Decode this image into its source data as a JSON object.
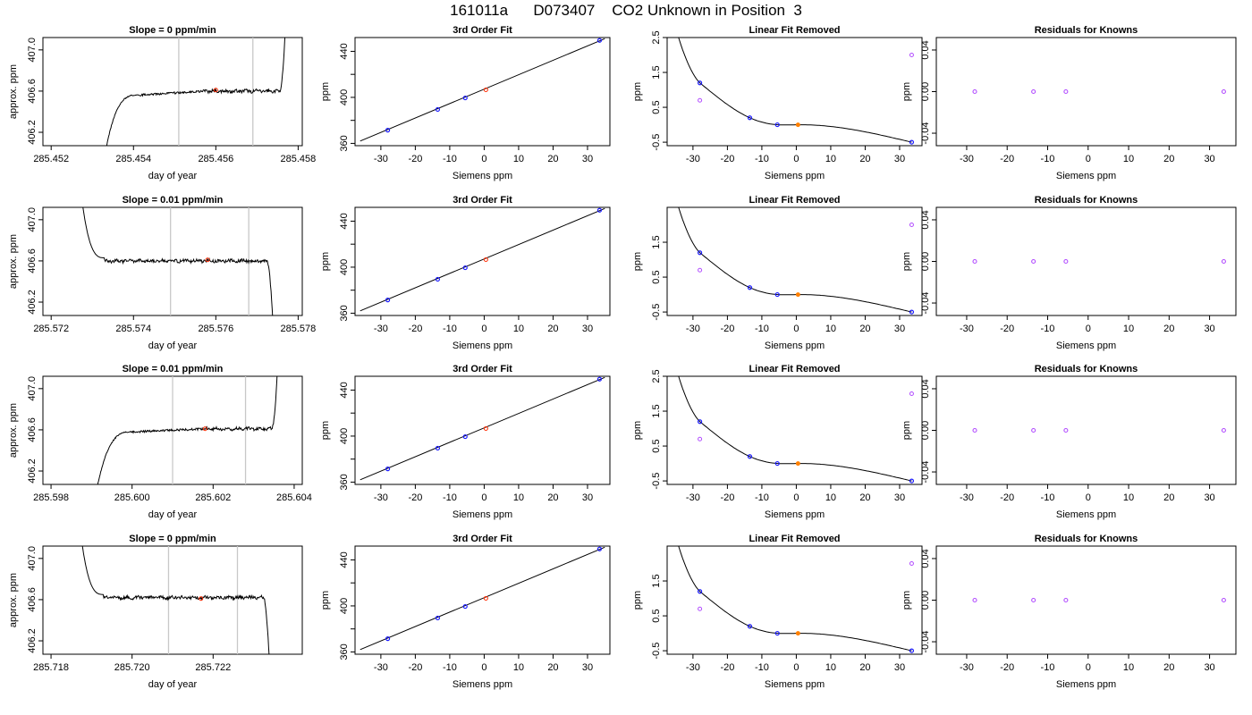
{
  "page_title": "161011a      D073407    CO2 Unknown in Position  3",
  "colors": {
    "trace": "#000000",
    "sample_window": "#c8c8c8",
    "unknown_point": "#ff2a00",
    "unknown_fit_point": "#ff8000",
    "known_point": "#1a1aff",
    "residual_point": "#b24dff",
    "grid_frame": "#000000"
  },
  "chart_data": [
    {
      "type": "line",
      "row": 0,
      "title": "Slope =  0  ppm/min",
      "xlabel": "day of year",
      "ylabel": "approx. ppm",
      "xlim": [
        285.4518,
        285.4581
      ],
      "ylim": [
        406.07,
        407.12
      ],
      "xticks": [
        285.452,
        285.454,
        285.456,
        285.458
      ],
      "xtick_labels": [
        "285.452",
        "285.454",
        "285.456",
        "285.458"
      ],
      "yticks": [
        406.2,
        406.6,
        407.0
      ],
      "ytick_labels": [
        "406.2",
        "406.6",
        "407.0"
      ],
      "window": [
        285.4551,
        285.4569
      ],
      "marker": [
        285.456,
        406.61
      ],
      "trace": {
        "start": 285.4533,
        "end": 285.4577,
        "level": 406.6,
        "rise_to": 406.56,
        "rise_len": 0.0008,
        "tail_up": true
      }
    },
    {
      "type": "line",
      "row": 1,
      "title": "Slope =  0.01  ppm/min",
      "xlabel": "day of year",
      "ylabel": "approx. ppm",
      "xlim": [
        285.5718,
        285.5781
      ],
      "ylim": [
        406.07,
        407.12
      ],
      "xticks": [
        285.572,
        285.574,
        285.576,
        285.578
      ],
      "xtick_labels": [
        "285.572",
        "285.574",
        "285.576",
        "285.578"
      ],
      "yticks": [
        406.2,
        406.6,
        407.0
      ],
      "ytick_labels": [
        "406.2",
        "406.6",
        "407.0"
      ],
      "window": [
        285.5749,
        285.5768
      ],
      "marker": [
        285.5758,
        406.61
      ],
      "trace": {
        "start": 285.5727,
        "end": 285.5774,
        "level": 406.6,
        "decay_from": 407.12,
        "decay_len": 0.0006,
        "tail_up": false
      }
    },
    {
      "type": "line",
      "row": 2,
      "title": "Slope =  0.01  ppm/min",
      "xlabel": "day of year",
      "ylabel": "approx. ppm",
      "xlim": [
        285.5978,
        285.6042
      ],
      "ylim": [
        406.07,
        407.12
      ],
      "xticks": [
        285.598,
        285.6,
        285.602,
        285.604
      ],
      "xtick_labels": [
        "285.598",
        "285.600",
        "285.602",
        "285.604"
      ],
      "yticks": [
        406.2,
        406.6,
        407.0
      ],
      "ytick_labels": [
        "406.2",
        "406.6",
        "407.0"
      ],
      "window": [
        285.601,
        285.6028
      ],
      "marker": [
        285.6018,
        406.61
      ],
      "trace": {
        "start": 285.5991,
        "end": 285.6036,
        "level": 406.61,
        "rise_to": 406.58,
        "rise_len": 0.0009,
        "tail_up": true
      }
    },
    {
      "type": "line",
      "row": 3,
      "title": "Slope =  0  ppm/min",
      "xlabel": "day of year",
      "ylabel": "approx. ppm",
      "xlim": [
        285.7178,
        285.7242
      ],
      "ylim": [
        406.07,
        407.12
      ],
      "xticks": [
        285.718,
        285.72,
        285.722
      ],
      "xtick_labels": [
        "285.718",
        "285.720",
        "285.722"
      ],
      "yticks": [
        406.2,
        406.6,
        407.0
      ],
      "ytick_labels": [
        "406.2",
        "406.6",
        "407.0"
      ],
      "window": [
        285.7209,
        285.7226
      ],
      "marker": [
        285.7217,
        406.61
      ],
      "trace": {
        "start": 285.7187,
        "end": 285.7234,
        "level": 406.62,
        "decay_from": 407.12,
        "decay_len": 0.0006,
        "tail_up": false
      }
    },
    {
      "type": "scatter",
      "row": 0,
      "title": "3rd Order Fit",
      "xlabel": "Siemens ppm",
      "ylabel": "ppm",
      "xlim": [
        -37.5,
        36.5
      ],
      "ylim": [
        358,
        452
      ],
      "xticks": [
        -30,
        -20,
        -10,
        0,
        10,
        20,
        30
      ],
      "xtick_labels": [
        "-30",
        "-20",
        "-10",
        "0",
        "10",
        "20",
        "30"
      ],
      "yticks": [
        360,
        400,
        440
      ],
      "ytick_labels": [
        "360",
        "400",
        "440"
      ],
      "yticks_minor": [
        380,
        420
      ],
      "line": {
        "x": [
          -36,
          35
        ],
        "y": [
          362,
          451
        ]
      },
      "known": {
        "x": [
          -28,
          -13.5,
          -5.5,
          33.5
        ],
        "y": [
          371.5,
          389.5,
          399.5,
          449.5
        ]
      },
      "unknown": {
        "x": [
          0.5
        ],
        "y": [
          406.6
        ]
      }
    },
    {
      "type": "scatter",
      "row": 1,
      "title": "3rd Order Fit",
      "xlabel": "Siemens ppm",
      "ylabel": "ppm",
      "xlim": [
        -37.5,
        36.5
      ],
      "ylim": [
        358,
        452
      ],
      "xticks": [
        -30,
        -20,
        -10,
        0,
        10,
        20,
        30
      ],
      "xtick_labels": [
        "-30",
        "-20",
        "-10",
        "0",
        "10",
        "20",
        "30"
      ],
      "yticks": [
        360,
        400,
        440
      ],
      "ytick_labels": [
        "360",
        "400",
        "440"
      ],
      "yticks_minor": [
        380,
        420
      ],
      "line": {
        "x": [
          -36,
          35
        ],
        "y": [
          362,
          451
        ]
      },
      "known": {
        "x": [
          -28,
          -13.5,
          -5.5,
          33.5
        ],
        "y": [
          371.5,
          389.5,
          399.5,
          449.5
        ]
      },
      "unknown": {
        "x": [
          0.5
        ],
        "y": [
          406.6
        ]
      }
    },
    {
      "type": "scatter",
      "row": 2,
      "title": "3rd Order Fit",
      "xlabel": "Siemens ppm",
      "ylabel": "ppm",
      "xlim": [
        -37.5,
        36.5
      ],
      "ylim": [
        358,
        452
      ],
      "xticks": [
        -30,
        -20,
        -10,
        0,
        10,
        20,
        30
      ],
      "xtick_labels": [
        "-30",
        "-20",
        "-10",
        "0",
        "10",
        "20",
        "30"
      ],
      "yticks": [
        360,
        400,
        440
      ],
      "ytick_labels": [
        "360",
        "400",
        "440"
      ],
      "yticks_minor": [
        380,
        420
      ],
      "line": {
        "x": [
          -36,
          35
        ],
        "y": [
          362,
          451
        ]
      },
      "known": {
        "x": [
          -28,
          -13.5,
          -5.5,
          33.5
        ],
        "y": [
          371.5,
          389.5,
          399.5,
          449.5
        ]
      },
      "unknown": {
        "x": [
          0.5
        ],
        "y": [
          406.6
        ]
      }
    },
    {
      "type": "scatter",
      "row": 3,
      "title": "3rd Order Fit",
      "xlabel": "Siemens ppm",
      "ylabel": "ppm",
      "xlim": [
        -37.5,
        36.5
      ],
      "ylim": [
        358,
        452
      ],
      "xticks": [
        -30,
        -20,
        -10,
        0,
        10,
        20,
        30
      ],
      "xtick_labels": [
        "-30",
        "-20",
        "-10",
        "0",
        "10",
        "20",
        "30"
      ],
      "yticks": [
        360,
        400,
        440
      ],
      "ytick_labels": [
        "360",
        "400",
        "440"
      ],
      "yticks_minor": [
        380,
        420
      ],
      "line": {
        "x": [
          -36,
          35
        ],
        "y": [
          362,
          451
        ]
      },
      "known": {
        "x": [
          -28,
          -13.5,
          -5.5,
          33.5
        ],
        "y": [
          371.5,
          389.5,
          399.5,
          449.5
        ]
      },
      "unknown": {
        "x": [
          0.5
        ],
        "y": [
          406.6
        ]
      }
    },
    {
      "type": "scatter",
      "row": 0,
      "title": "Linear Fit Removed",
      "xlabel": "Siemens ppm",
      "ylabel": "ppm",
      "xlim": [
        -37.5,
        36.5
      ],
      "ylim": [
        -0.6,
        2.5
      ],
      "xticks": [
        -30,
        -20,
        -10,
        0,
        10,
        20,
        30
      ],
      "xtick_labels": [
        "-30",
        "-20",
        "-10",
        "0",
        "10",
        "20",
        "30"
      ],
      "yticks": [
        -0.5,
        0.5,
        1.5,
        2.5
      ],
      "ytick_labels": [
        "-0.5",
        "0.5",
        "1.5",
        "2.5"
      ],
      "curve": {
        "x0": -36,
        "x1": 33.5,
        "knots_x": [
          -28,
          -13.5,
          -5.5,
          0.5,
          33.5
        ],
        "knots_y": [
          1.2,
          0.2,
          0.0,
          0.0,
          -0.5
        ]
      },
      "known": {
        "x": [
          -28,
          -13.5,
          -5.5,
          33.5
        ],
        "y": [
          1.2,
          0.2,
          0.0,
          -0.5
        ]
      },
      "unknown": {
        "x": [
          0.5
        ],
        "y": [
          0.0
        ]
      },
      "residual_raw": {
        "x": [
          -28,
          33.5
        ],
        "y": [
          0.7,
          2.0
        ]
      }
    },
    {
      "type": "scatter",
      "row": 1,
      "title": "Linear Fit Removed",
      "xlabel": "Siemens ppm",
      "ylabel": "ppm",
      "xlim": [
        -37.5,
        36.5
      ],
      "ylim": [
        -0.6,
        2.5
      ],
      "xticks": [
        -30,
        -20,
        -10,
        0,
        10,
        20,
        30
      ],
      "xtick_labels": [
        "-30",
        "-20",
        "-10",
        "0",
        "10",
        "20",
        "30"
      ],
      "yticks": [
        -0.5,
        0.5,
        1.5
      ],
      "ytick_labels": [
        "-0.5",
        "0.5",
        "1.5"
      ],
      "curve": {
        "x0": -36,
        "x1": 33.5,
        "knots_x": [
          -28,
          -13.5,
          -5.5,
          0.5,
          33.5
        ],
        "knots_y": [
          1.2,
          0.2,
          0.0,
          0.0,
          -0.5
        ]
      },
      "known": {
        "x": [
          -28,
          -13.5,
          -5.5,
          33.5
        ],
        "y": [
          1.2,
          0.2,
          0.0,
          -0.5
        ]
      },
      "unknown": {
        "x": [
          0.5
        ],
        "y": [
          0.0
        ]
      },
      "residual_raw": {
        "x": [
          -28,
          33.5
        ],
        "y": [
          0.7,
          2.0
        ]
      }
    },
    {
      "type": "scatter",
      "row": 2,
      "title": "Linear Fit Removed",
      "xlabel": "Siemens ppm",
      "ylabel": "ppm",
      "xlim": [
        -37.5,
        36.5
      ],
      "ylim": [
        -0.6,
        2.5
      ],
      "xticks": [
        -30,
        -20,
        -10,
        0,
        10,
        20,
        30
      ],
      "xtick_labels": [
        "-30",
        "-20",
        "-10",
        "0",
        "10",
        "20",
        "30"
      ],
      "yticks": [
        -0.5,
        0.5,
        1.5,
        2.5
      ],
      "ytick_labels": [
        "-0.5",
        "0.5",
        "1.5",
        "2.5"
      ],
      "curve": {
        "x0": -36,
        "x1": 33.5,
        "knots_x": [
          -28,
          -13.5,
          -5.5,
          0.5,
          33.5
        ],
        "knots_y": [
          1.2,
          0.2,
          0.0,
          0.0,
          -0.5
        ]
      },
      "known": {
        "x": [
          -28,
          -13.5,
          -5.5,
          33.5
        ],
        "y": [
          1.2,
          0.2,
          0.0,
          -0.5
        ]
      },
      "unknown": {
        "x": [
          0.5
        ],
        "y": [
          0.0
        ]
      },
      "residual_raw": {
        "x": [
          -28,
          33.5
        ],
        "y": [
          0.7,
          2.0
        ]
      }
    },
    {
      "type": "scatter",
      "row": 3,
      "title": "Linear Fit Removed",
      "xlabel": "Siemens ppm",
      "ylabel": "ppm",
      "xlim": [
        -37.5,
        36.5
      ],
      "ylim": [
        -0.6,
        2.5
      ],
      "xticks": [
        -30,
        -20,
        -10,
        0,
        10,
        20,
        30
      ],
      "xtick_labels": [
        "-30",
        "-20",
        "-10",
        "0",
        "10",
        "20",
        "30"
      ],
      "yticks": [
        -0.5,
        0.5,
        1.5
      ],
      "ytick_labels": [
        "-0.5",
        "0.5",
        "1.5"
      ],
      "curve": {
        "x0": -36,
        "x1": 33.5,
        "knots_x": [
          -28,
          -13.5,
          -5.5,
          0.5,
          33.5
        ],
        "knots_y": [
          1.2,
          0.2,
          0.0,
          0.0,
          -0.5
        ]
      },
      "known": {
        "x": [
          -28,
          -13.5,
          -5.5,
          33.5
        ],
        "y": [
          1.2,
          0.2,
          0.0,
          -0.5
        ]
      },
      "unknown": {
        "x": [
          0.5
        ],
        "y": [
          0.0
        ]
      },
      "residual_raw": {
        "x": [
          -28,
          33.5
        ],
        "y": [
          0.7,
          2.0
        ]
      }
    },
    {
      "type": "scatter",
      "row": 0,
      "title": "Residuals for Knowns",
      "xlabel": "Siemens ppm",
      "ylabel": "ppm",
      "xlim": [
        -37.5,
        36.5
      ],
      "ylim": [
        -0.052,
        0.052
      ],
      "xticks": [
        -30,
        -20,
        -10,
        0,
        10,
        20,
        30
      ],
      "xtick_labels": [
        "-30",
        "-20",
        "-10",
        "0",
        "10",
        "20",
        "30"
      ],
      "yticks": [
        -0.04,
        0.0,
        0.04
      ],
      "ytick_labels": [
        "-0.04",
        "0.00",
        "0.04"
      ],
      "residuals": {
        "x": [
          -28,
          -13.5,
          -5.5,
          33.5
        ],
        "y": [
          0,
          0,
          0,
          0
        ]
      }
    },
    {
      "type": "scatter",
      "row": 1,
      "title": "Residuals for Knowns",
      "xlabel": "Siemens ppm",
      "ylabel": "ppm",
      "xlim": [
        -37.5,
        36.5
      ],
      "ylim": [
        -0.052,
        0.052
      ],
      "xticks": [
        -30,
        -20,
        -10,
        0,
        10,
        20,
        30
      ],
      "xtick_labels": [
        "-30",
        "-20",
        "-10",
        "0",
        "10",
        "20",
        "30"
      ],
      "yticks": [
        -0.04,
        0.0,
        0.04
      ],
      "ytick_labels": [
        "-0.04",
        "0.00",
        "0.04"
      ],
      "residuals": {
        "x": [
          -28,
          -13.5,
          -5.5,
          33.5
        ],
        "y": [
          0,
          0,
          0,
          0
        ]
      }
    },
    {
      "type": "scatter",
      "row": 2,
      "title": "Residuals for Knowns",
      "xlabel": "Siemens ppm",
      "ylabel": "ppm",
      "xlim": [
        -37.5,
        36.5
      ],
      "ylim": [
        -0.052,
        0.052
      ],
      "xticks": [
        -30,
        -20,
        -10,
        0,
        10,
        20,
        30
      ],
      "xtick_labels": [
        "-30",
        "-20",
        "-10",
        "0",
        "10",
        "20",
        "30"
      ],
      "yticks": [
        -0.04,
        0.0,
        0.04
      ],
      "ytick_labels": [
        "-0.04",
        "0.00",
        "0.04"
      ],
      "residuals": {
        "x": [
          -28,
          -13.5,
          -5.5,
          33.5
        ],
        "y": [
          0,
          0,
          0,
          0
        ]
      }
    },
    {
      "type": "scatter",
      "row": 3,
      "title": "Residuals for Knowns",
      "xlabel": "Siemens ppm",
      "ylabel": "ppm",
      "xlim": [
        -37.5,
        36.5
      ],
      "ylim": [
        -0.052,
        0.052
      ],
      "xticks": [
        -30,
        -20,
        -10,
        0,
        10,
        20,
        30
      ],
      "xtick_labels": [
        "-30",
        "-20",
        "-10",
        "0",
        "10",
        "20",
        "30"
      ],
      "yticks": [
        -0.04,
        0.0,
        0.04
      ],
      "ytick_labels": [
        "-0.04",
        "0.00",
        "0.04"
      ],
      "residuals": {
        "x": [
          -28,
          -13.5,
          -5.5,
          33.5
        ],
        "y": [
          0,
          0,
          0,
          0
        ]
      }
    }
  ]
}
